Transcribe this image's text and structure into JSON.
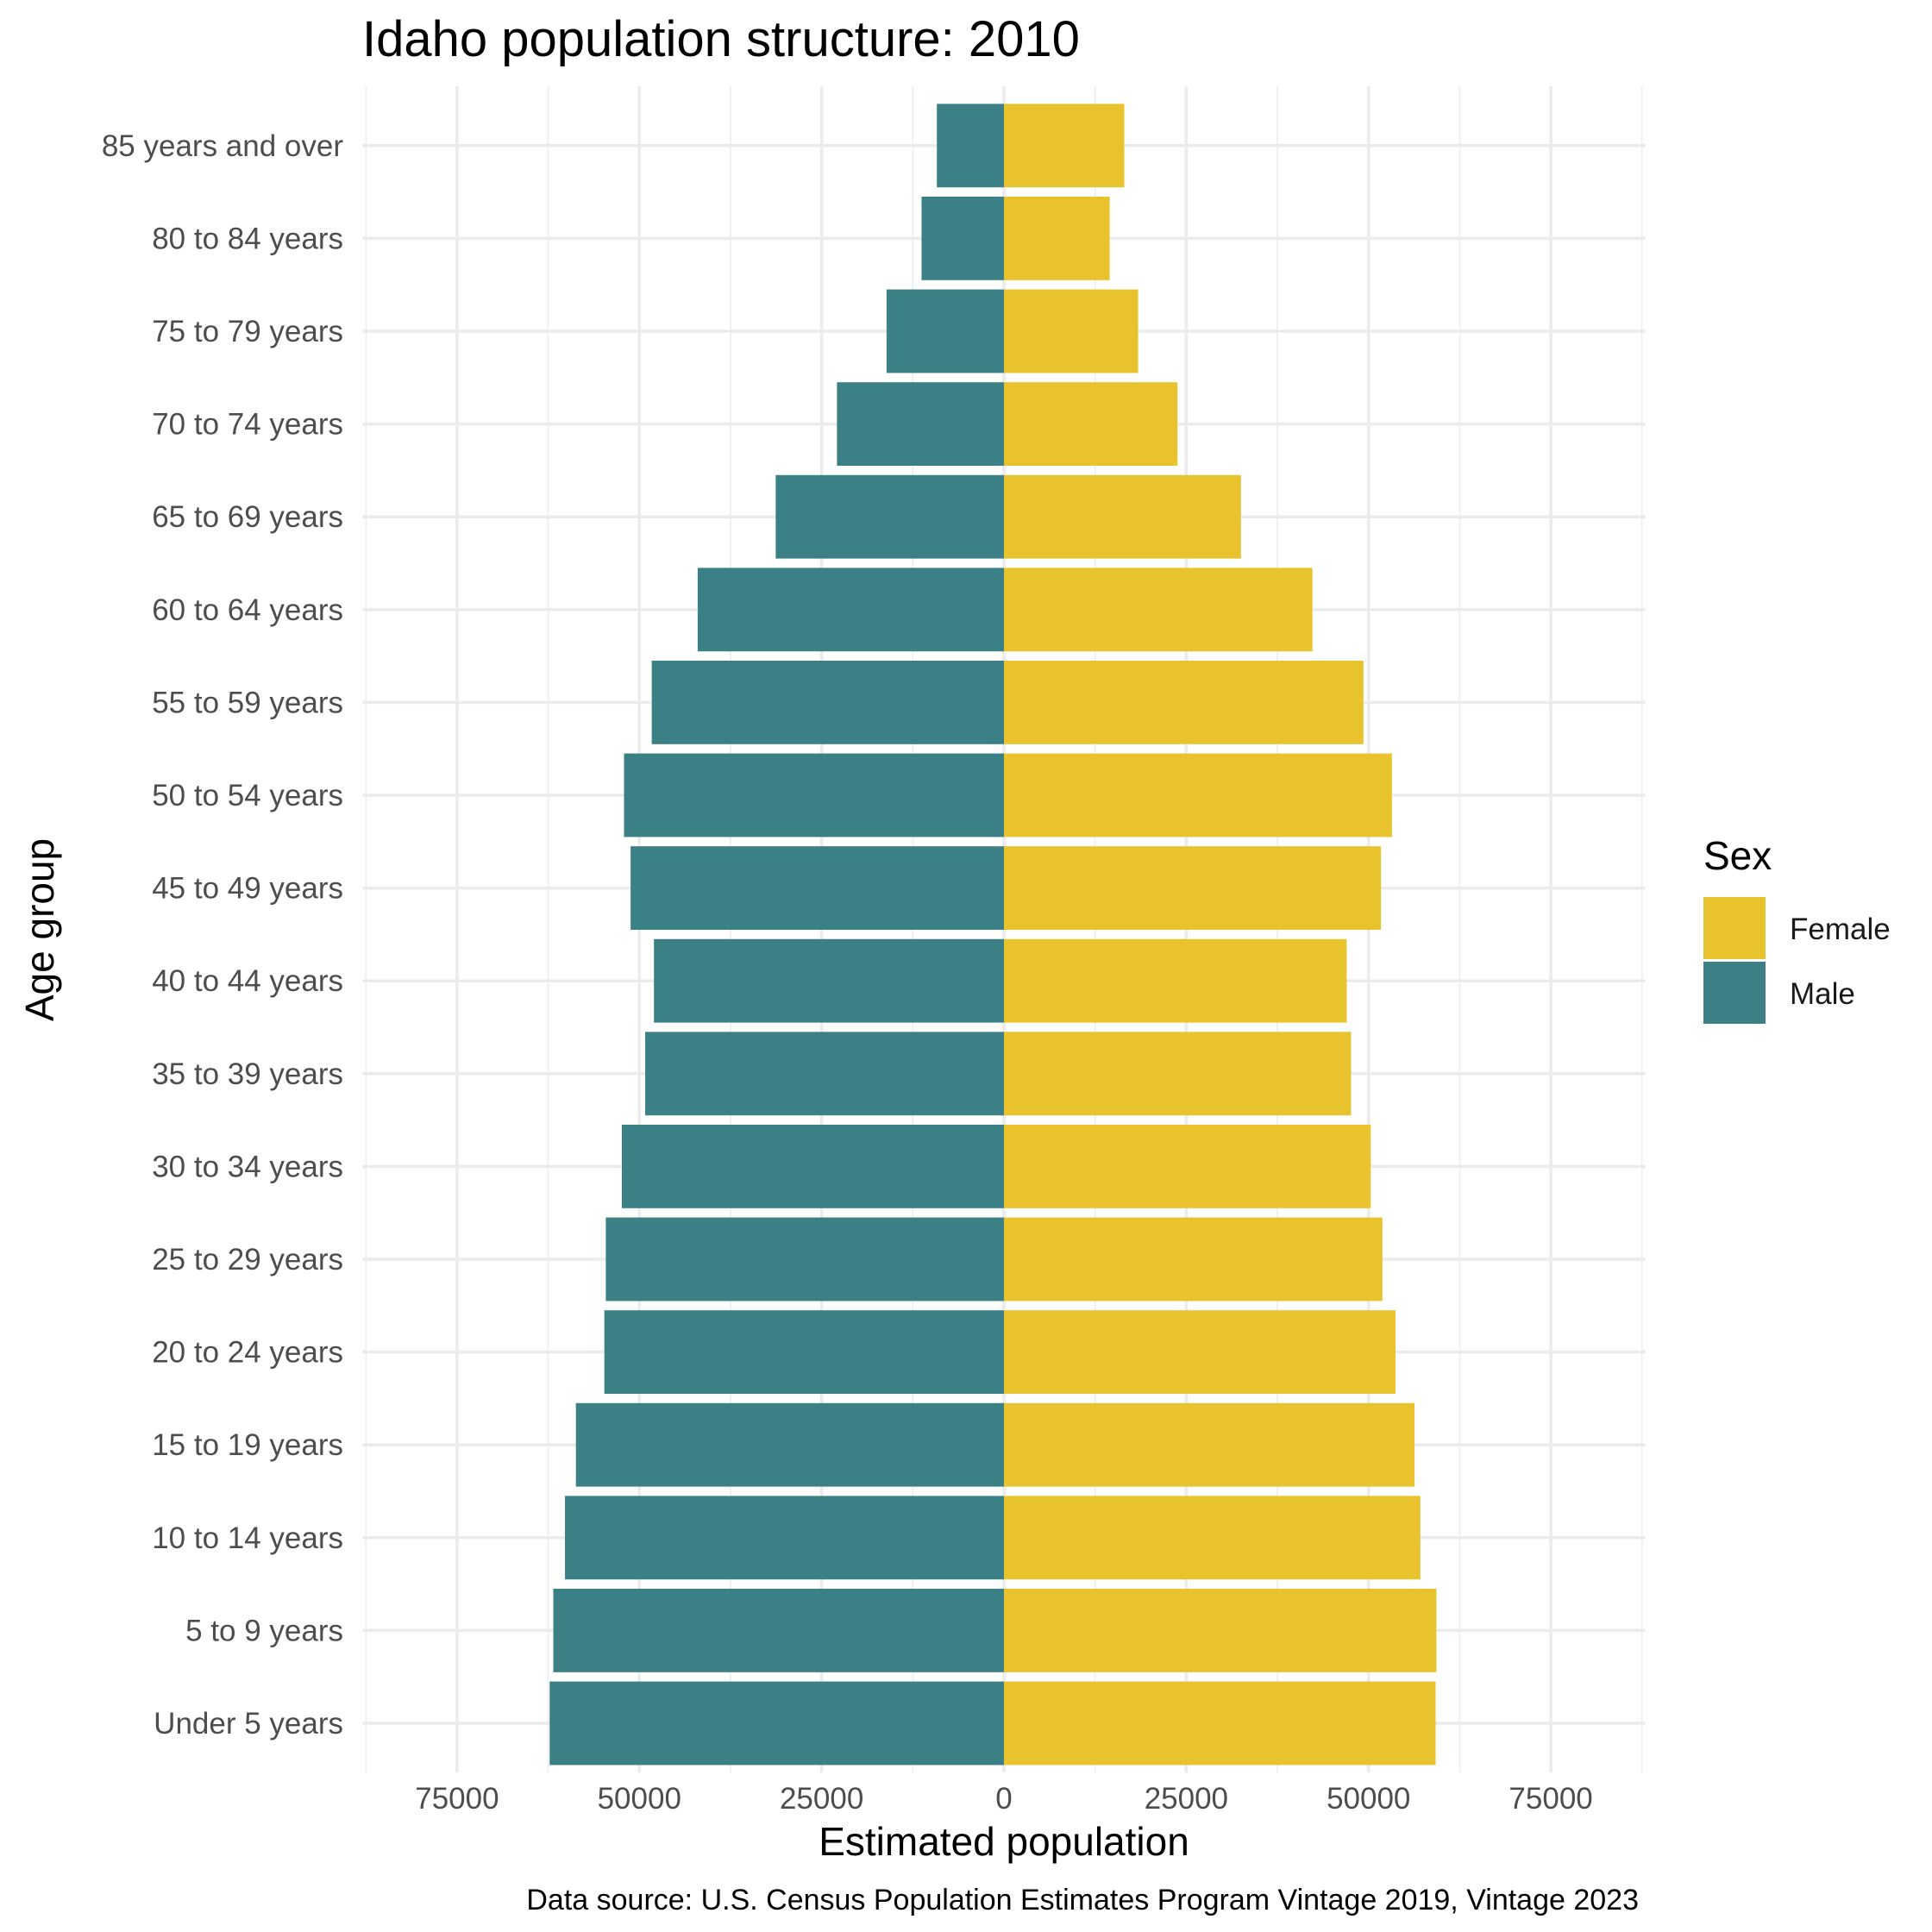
{
  "chart_data": {
    "type": "bar",
    "orientation": "horizontal",
    "title": "Idaho population structure: 2010",
    "xlabel": "Estimated population",
    "ylabel": "Age group",
    "caption": "Data source: U.S. Census Population Estimates Program Vintage 2019, Vintage 2023",
    "xlim": [
      -88000,
      88000
    ],
    "x_ticks": [
      -75000,
      -50000,
      -25000,
      0,
      25000,
      50000,
      75000
    ],
    "x_tick_labels": [
      "75000",
      "50000",
      "25000",
      "0",
      "25000",
      "50000",
      "75000"
    ],
    "grid": true,
    "legend_position": "right",
    "legend": {
      "title": "Sex",
      "items": [
        {
          "label": "Female",
          "color": "#E8C32E"
        },
        {
          "label": "Male",
          "color": "#3B8085"
        }
      ]
    },
    "categories": [
      "Under 5 years",
      "5 to 9 years",
      "10 to 14 years",
      "15 to 19 years",
      "20 to 24 years",
      "25 to 29 years",
      "30 to 34 years",
      "35 to 39 years",
      "40 to 44 years",
      "45 to 49 years",
      "50 to 54 years",
      "55 to 59 years",
      "60 to 64 years",
      "65 to 69 years",
      "70 to 74 years",
      "75 to 79 years",
      "80 to 84 years",
      "85 years and over"
    ],
    "series": [
      {
        "name": "Male",
        "color": "#3B8085",
        "values": [
          -62300,
          -61800,
          -60200,
          -58700,
          -54800,
          -54600,
          -52400,
          -49200,
          -48000,
          -51200,
          -52100,
          -48300,
          -42000,
          -31300,
          -22900,
          -16100,
          -11300,
          -9200
        ]
      },
      {
        "name": "Female",
        "color": "#E8C32E",
        "values": [
          59200,
          59300,
          57100,
          56300,
          53700,
          51900,
          50300,
          47600,
          47000,
          51700,
          53200,
          49300,
          42300,
          32500,
          23800,
          18400,
          14500,
          16500
        ]
      }
    ]
  }
}
